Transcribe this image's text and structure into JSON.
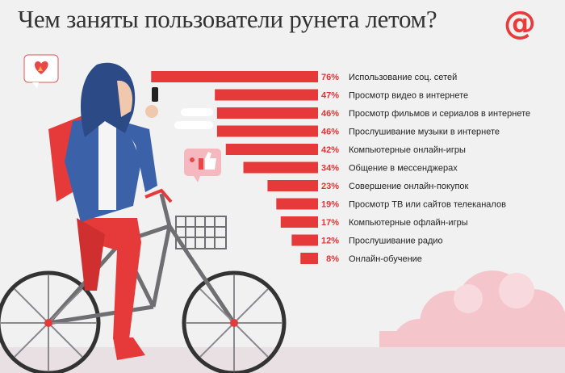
{
  "title": "Чем заняты пользователи рунета летом?",
  "logo_glyph": "@",
  "colors": {
    "accent": "#e63a3a",
    "text": "#222222",
    "background": "#f1f1f2"
  },
  "chart_data": {
    "type": "bar",
    "orientation": "horizontal",
    "title": "Чем заняты пользователи рунета летом?",
    "unit": "%",
    "categories": [
      "Использование соц. сетей",
      "Просмотр видео в интернете",
      "Просмотр фильмов и сериалов в интернете",
      "Прослушивание музыки в интернете",
      "Компьютерные онлайн-игры",
      "Общение в мессенджерах",
      "Совершение онлайн-покупок",
      "Просмотр ТВ или сайтов телеканалов",
      "Компьютерные офлайн-игры",
      "Прослушивание радио",
      "Онлайн-обучение"
    ],
    "values": [
      76,
      47,
      46,
      46,
      42,
      34,
      23,
      19,
      17,
      12,
      8
    ],
    "value_labels": [
      "76%",
      "47%",
      "46%",
      "46%",
      "42%",
      "34%",
      "23%",
      "19%",
      "17%",
      "12%",
      "8%"
    ],
    "grid": false,
    "legend": "none"
  }
}
